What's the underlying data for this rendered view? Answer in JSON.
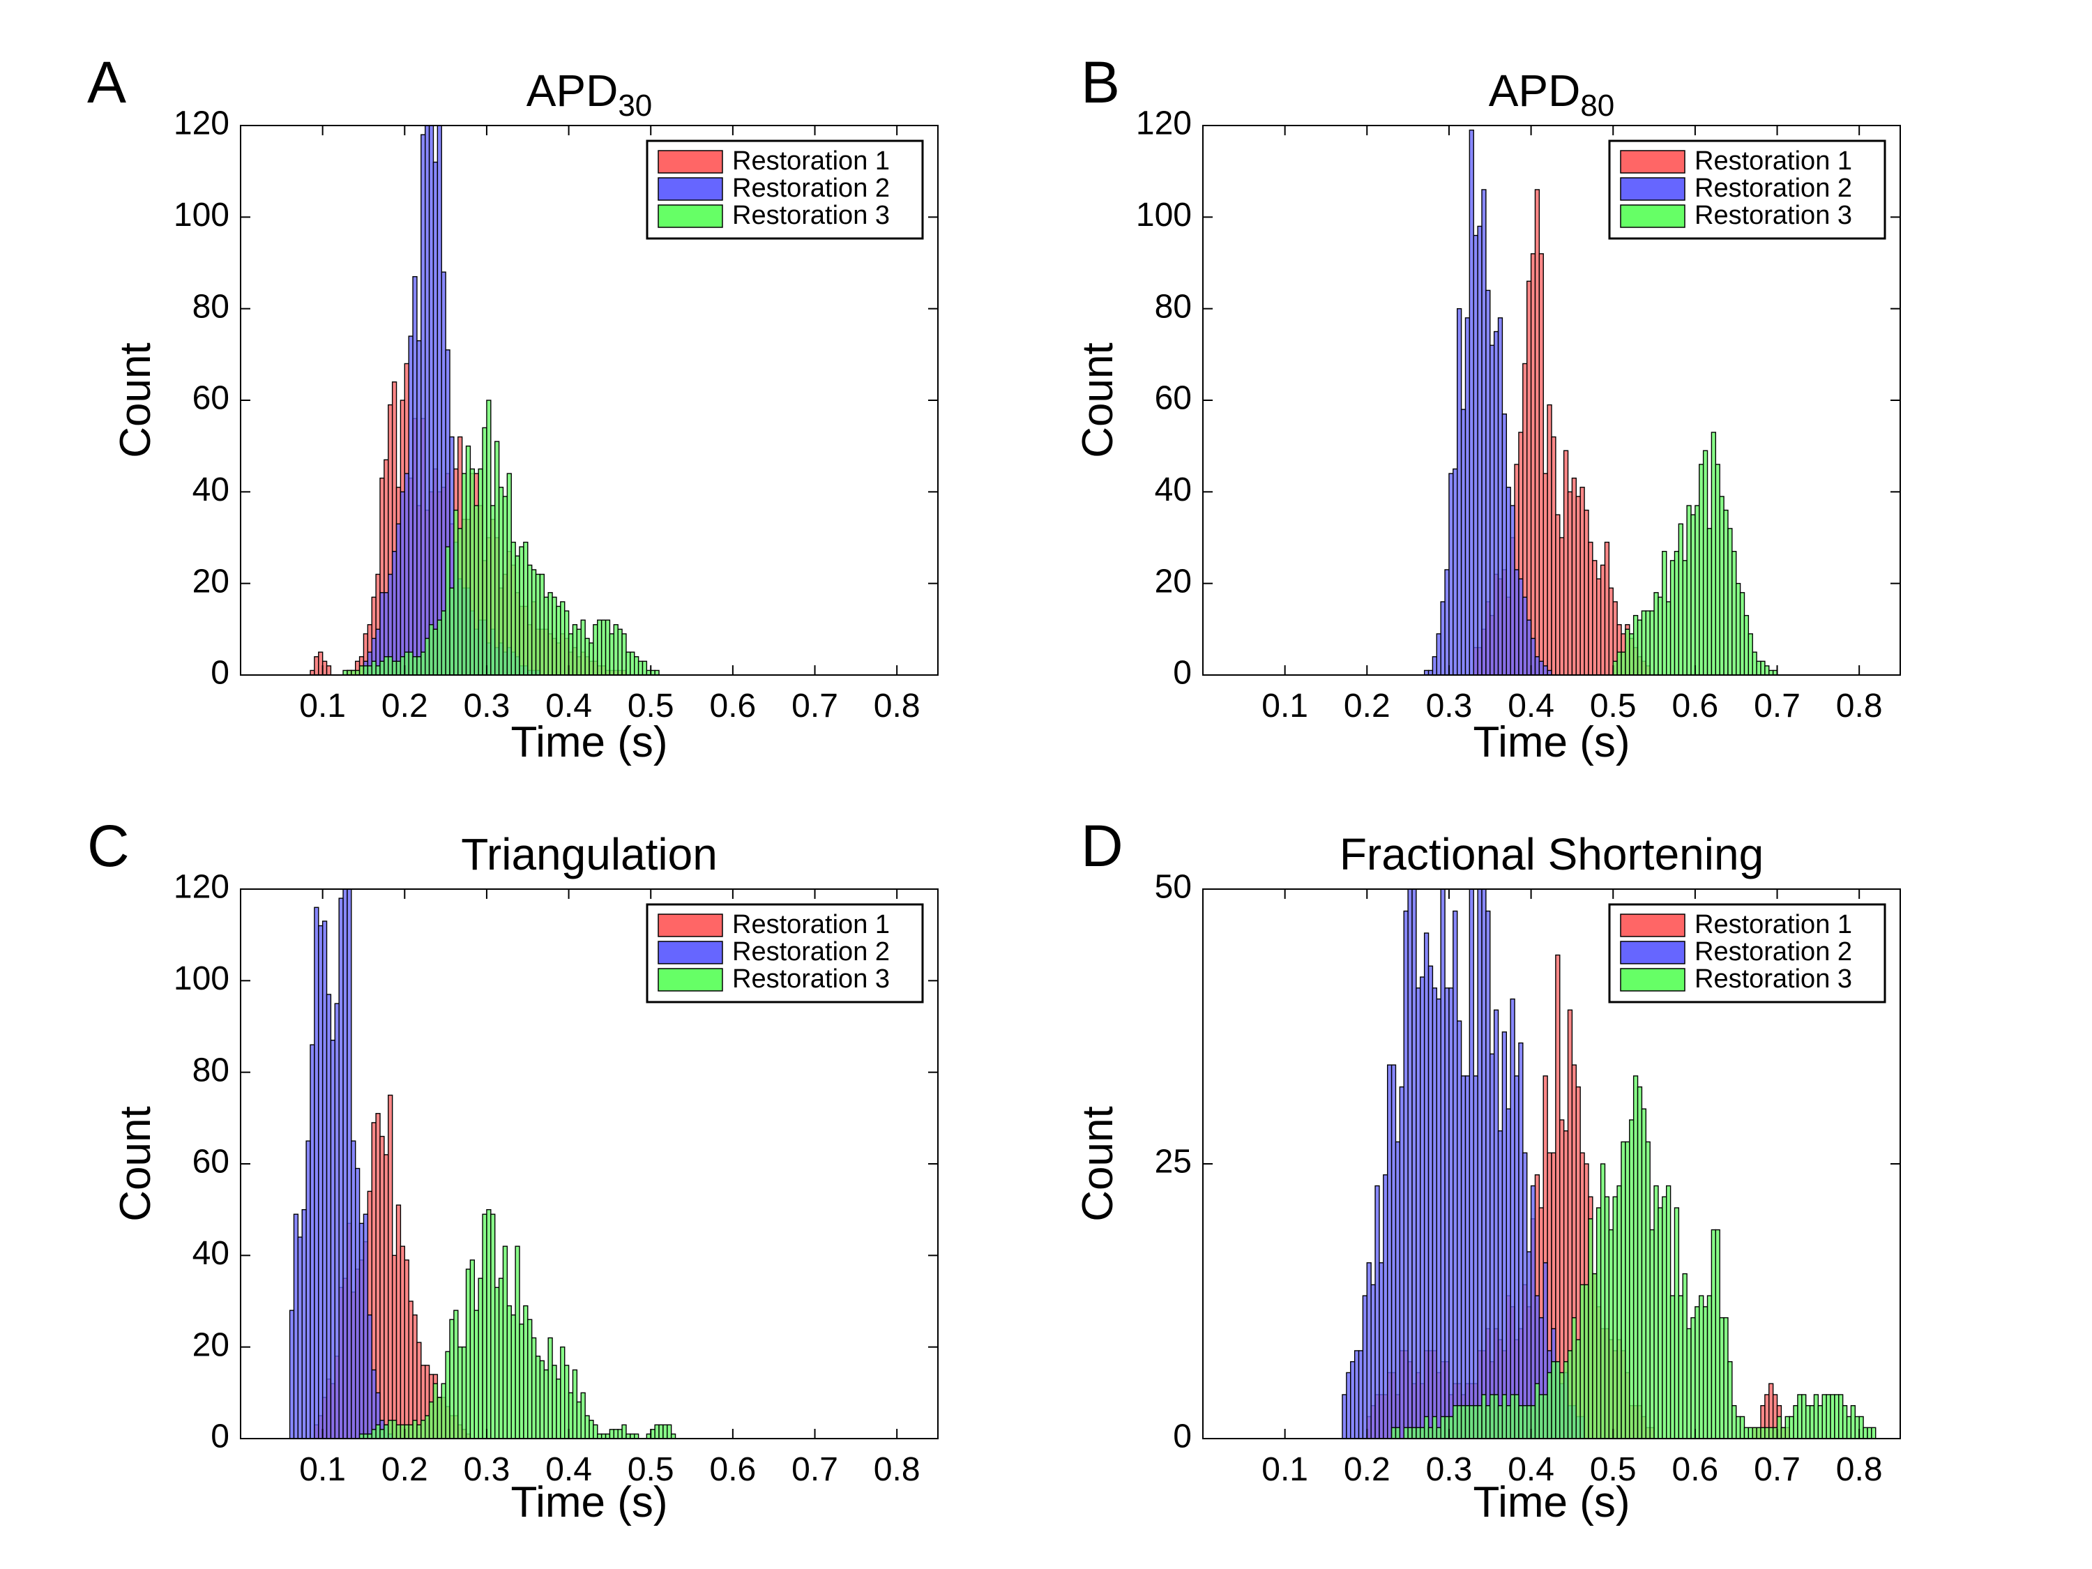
{
  "figure": {
    "legend_colors": [
      "#ff6666",
      "#6666ff",
      "#66ff66"
    ]
  },
  "chart_data": [
    {
      "panel": "A",
      "type": "bar",
      "title": "APD",
      "title_subscript": "30",
      "xlabel": "Time (s)",
      "ylabel": "Count",
      "xlim": [
        0,
        0.85
      ],
      "ylim": [
        0,
        120
      ],
      "xticks": [
        "0.1",
        "0.2",
        "0.3",
        "0.4",
        "0.5",
        "0.6",
        "0.7",
        "0.8"
      ],
      "xtick_values": [
        0.1,
        0.2,
        0.3,
        0.4,
        0.5,
        0.6,
        0.7,
        0.8
      ],
      "yticks": [
        "0",
        "20",
        "40",
        "60",
        "80",
        "100",
        "120"
      ],
      "ytick_values": [
        0,
        20,
        40,
        60,
        80,
        100,
        120
      ],
      "legend": [
        "Restoration 1",
        "Restoration 2",
        "Restoration 3"
      ],
      "bin_width": 0.005,
      "series": [
        {
          "name": "Restoration 1",
          "peaks": [
            [
              0.095,
              6,
              0.006
            ],
            [
              0.185,
              42,
              0.018
            ],
            [
              0.22,
              40,
              0.03
            ],
            [
              0.275,
              36,
              0.03
            ],
            [
              0.33,
              15,
              0.03
            ],
            [
              0.39,
              6,
              0.035
            ]
          ],
          "range": [
            0.08,
            0.47
          ]
        },
        {
          "name": "Restoration 2",
          "peaks": [
            [
              0.232,
              106,
              0.017
            ],
            [
              0.21,
              40,
              0.03
            ],
            [
              0.29,
              12,
              0.03
            ]
          ],
          "range": [
            0.15,
            0.36
          ]
        },
        {
          "name": "Restoration 3",
          "peaks": [
            [
              0.275,
              22,
              0.025
            ],
            [
              0.31,
              42,
              0.035
            ],
            [
              0.38,
              13,
              0.045
            ],
            [
              0.455,
              8,
              0.02
            ],
            [
              0.2,
              5,
              0.04
            ]
          ],
          "range": [
            0.12,
            0.535
          ]
        }
      ]
    },
    {
      "panel": "B",
      "type": "bar",
      "title": "APD",
      "title_subscript": "80",
      "xlabel": "Time (s)",
      "ylabel": "Count",
      "xlim": [
        0,
        0.85
      ],
      "ylim": [
        0,
        120
      ],
      "xticks": [
        "0.1",
        "0.2",
        "0.3",
        "0.4",
        "0.5",
        "0.6",
        "0.7",
        "0.8"
      ],
      "xtick_values": [
        0.1,
        0.2,
        0.3,
        0.4,
        0.5,
        0.6,
        0.7,
        0.8
      ],
      "yticks": [
        "0",
        "20",
        "40",
        "60",
        "80",
        "100",
        "120"
      ],
      "ytick_values": [
        0,
        20,
        40,
        60,
        80,
        100,
        120
      ],
      "legend": [
        "Restoration 1",
        "Restoration 2",
        "Restoration 3"
      ],
      "bin_width": 0.005,
      "series": [
        {
          "name": "Restoration 1",
          "peaks": [
            [
              0.4,
              80,
              0.013
            ],
            [
              0.435,
              35,
              0.03
            ],
            [
              0.48,
              22,
              0.03
            ],
            [
              0.36,
              20,
              0.02
            ]
          ],
          "range": [
            0.33,
            0.54
          ]
        },
        {
          "name": "Restoration 2",
          "peaks": [
            [
              0.32,
              88,
              0.016
            ],
            [
              0.345,
              85,
              0.014
            ],
            [
              0.37,
              30,
              0.02
            ]
          ],
          "range": [
            0.265,
            0.42
          ]
        },
        {
          "name": "Restoration 3",
          "peaks": [
            [
              0.615,
              50,
              0.027
            ],
            [
              0.56,
              18,
              0.025
            ],
            [
              0.52,
              6,
              0.02
            ]
          ],
          "range": [
            0.5,
            0.695
          ]
        }
      ]
    },
    {
      "panel": "C",
      "type": "bar",
      "title": "Triangulation",
      "title_subscript": "",
      "xlabel": "Time (s)",
      "ylabel": "Count",
      "xlim": [
        0,
        0.85
      ],
      "ylim": [
        0,
        120
      ],
      "xticks": [
        "0.1",
        "0.2",
        "0.3",
        "0.4",
        "0.5",
        "0.6",
        "0.7",
        "0.8"
      ],
      "xtick_values": [
        0.1,
        0.2,
        0.3,
        0.4,
        0.5,
        0.6,
        0.7,
        0.8
      ],
      "yticks": [
        "0",
        "20",
        "40",
        "60",
        "80",
        "100",
        "120"
      ],
      "ytick_values": [
        0,
        20,
        40,
        60,
        80,
        100,
        120
      ],
      "legend": [
        "Restoration 1",
        "Restoration 2",
        "Restoration 3"
      ],
      "bin_width": 0.005,
      "series": [
        {
          "name": "Restoration 1",
          "peaks": [
            [
              0.17,
              70,
              0.018
            ],
            [
              0.135,
              40,
              0.02
            ],
            [
              0.21,
              20,
              0.02
            ],
            [
              0.245,
              6,
              0.015
            ]
          ],
          "range": [
            0.09,
            0.29
          ]
        },
        {
          "name": "Restoration 2",
          "peaks": [
            [
              0.1,
              108,
              0.02
            ],
            [
              0.13,
              80,
              0.017
            ],
            [
              0.075,
              30,
              0.012
            ]
          ],
          "range": [
            0.06,
            0.19
          ]
        },
        {
          "name": "Restoration 3",
          "peaks": [
            [
              0.305,
              42,
              0.025
            ],
            [
              0.35,
              22,
              0.025
            ],
            [
              0.395,
              14,
              0.02
            ],
            [
              0.26,
              18,
              0.02
            ],
            [
              0.195,
              4,
              0.03
            ],
            [
              0.46,
              3,
              0.012
            ],
            [
              0.51,
              4,
              0.01
            ]
          ],
          "range": [
            0.14,
            0.525
          ]
        }
      ]
    },
    {
      "panel": "D",
      "type": "bar",
      "title": "Fractional Shortening",
      "title_subscript": "",
      "xlabel": "Time (s)",
      "ylabel": "Count",
      "xlim": [
        0,
        0.85
      ],
      "ylim": [
        0,
        50
      ],
      "xticks": [
        "0.1",
        "0.2",
        "0.3",
        "0.4",
        "0.5",
        "0.6",
        "0.7",
        "0.8"
      ],
      "xtick_values": [
        0.1,
        0.2,
        0.3,
        0.4,
        0.5,
        0.6,
        0.7,
        0.8
      ],
      "yticks": [
        "0",
        "25",
        "50"
      ],
      "ytick_values": [
        0,
        25,
        50
      ],
      "legend": [
        "Restoration 1",
        "Restoration 2",
        "Restoration 3"
      ],
      "bin_width": 0.005,
      "series": [
        {
          "name": "Restoration 1",
          "peaks": [
            [
              0.44,
              38,
              0.025
            ],
            [
              0.38,
              12,
              0.04
            ],
            [
              0.26,
              8,
              0.04
            ],
            [
              0.5,
              8,
              0.02
            ],
            [
              0.69,
              5,
              0.01
            ]
          ],
          "range": [
            0.2,
            0.72
          ]
        },
        {
          "name": "Restoration 2",
          "peaks": [
            [
              0.3,
              40,
              0.06
            ],
            [
              0.25,
              20,
              0.03
            ],
            [
              0.36,
              22,
              0.04
            ]
          ],
          "range": [
            0.17,
            0.46
          ]
        },
        {
          "name": "Restoration 3",
          "peaks": [
            [
              0.51,
              28,
              0.045
            ],
            [
              0.58,
              10,
              0.04
            ],
            [
              0.35,
              4,
              0.06
            ],
            [
              0.625,
              16,
              0.008
            ],
            [
              0.73,
              4,
              0.02
            ],
            [
              0.78,
              4,
              0.02
            ]
          ],
          "range": [
            0.13,
            0.82
          ]
        }
      ]
    }
  ]
}
